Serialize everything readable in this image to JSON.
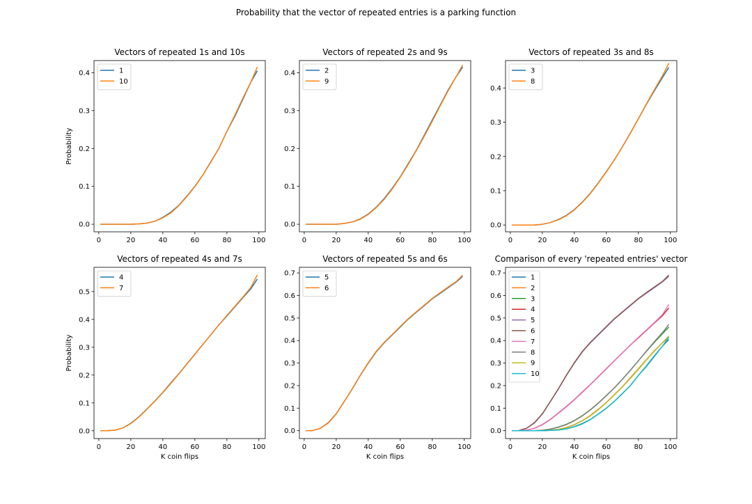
{
  "figure": {
    "title": "Probability that the vector of repeated entries is a parking function"
  },
  "chart_data": [
    {
      "type": "line",
      "title": "Vectors of repeated 1s and 10s",
      "xlabel": "",
      "ylabel": "Probability",
      "xlim": [
        -3,
        104
      ],
      "ylim": [
        -0.02,
        0.432
      ],
      "xticks": [
        0,
        20,
        40,
        60,
        80,
        100
      ],
      "yticks": [
        0.0,
        0.1,
        0.2,
        0.3,
        0.4
      ],
      "legend": "top-left",
      "series": [
        {
          "name": "1",
          "color": "#1f77b4",
          "x": [
            1,
            10,
            20,
            25,
            30,
            35,
            40,
            45,
            50,
            55,
            60,
            65,
            70,
            75,
            80,
            85,
            90,
            95,
            99
          ],
          "y": [
            0.0,
            0.0,
            0.0,
            0.001,
            0.003,
            0.008,
            0.018,
            0.032,
            0.05,
            0.074,
            0.1,
            0.13,
            0.165,
            0.2,
            0.245,
            0.285,
            0.33,
            0.375,
            0.405
          ]
        },
        {
          "name": "10",
          "color": "#ff7f0e",
          "x": [
            1,
            10,
            20,
            25,
            30,
            35,
            40,
            45,
            50,
            55,
            60,
            65,
            70,
            75,
            80,
            85,
            90,
            95,
            99
          ],
          "y": [
            0.0,
            0.0,
            0.0,
            0.001,
            0.003,
            0.008,
            0.017,
            0.03,
            0.049,
            0.073,
            0.099,
            0.13,
            0.164,
            0.2,
            0.245,
            0.288,
            0.333,
            0.375,
            0.415
          ]
        }
      ]
    },
    {
      "type": "line",
      "title": "Vectors of repeated 2s and 9s",
      "xlabel": "",
      "ylabel": "",
      "xlim": [
        -3,
        104
      ],
      "ylim": [
        -0.02,
        0.432
      ],
      "xticks": [
        0,
        20,
        40,
        60,
        80,
        100
      ],
      "yticks": [
        0.0,
        0.1,
        0.2,
        0.3,
        0.4
      ],
      "legend": "top-left",
      "series": [
        {
          "name": "2",
          "color": "#1f77b4",
          "x": [
            1,
            10,
            20,
            25,
            30,
            35,
            40,
            45,
            50,
            55,
            60,
            65,
            70,
            75,
            80,
            85,
            90,
            95,
            99
          ],
          "y": [
            0.0,
            0.0,
            0.0,
            0.002,
            0.006,
            0.014,
            0.027,
            0.045,
            0.068,
            0.095,
            0.125,
            0.16,
            0.195,
            0.235,
            0.275,
            0.315,
            0.355,
            0.39,
            0.415
          ]
        },
        {
          "name": "9",
          "color": "#ff7f0e",
          "x": [
            1,
            10,
            20,
            25,
            30,
            35,
            40,
            45,
            50,
            55,
            60,
            65,
            70,
            75,
            80,
            85,
            90,
            95,
            99
          ],
          "y": [
            0.0,
            0.0,
            0.0,
            0.002,
            0.006,
            0.013,
            0.026,
            0.044,
            0.066,
            0.093,
            0.124,
            0.158,
            0.194,
            0.232,
            0.272,
            0.313,
            0.353,
            0.39,
            0.42
          ]
        }
      ]
    },
    {
      "type": "line",
      "title": "Vectors of repeated 3s and 8s",
      "xlabel": "",
      "ylabel": "",
      "xlim": [
        -3,
        104
      ],
      "ylim": [
        -0.02,
        0.48
      ],
      "xticks": [
        0,
        20,
        40,
        60,
        80,
        100
      ],
      "yticks": [
        0.0,
        0.1,
        0.2,
        0.3,
        0.4
      ],
      "legend": "top-left",
      "series": [
        {
          "name": "3",
          "color": "#1f77b4",
          "x": [
            1,
            10,
            15,
            20,
            25,
            30,
            35,
            40,
            45,
            50,
            55,
            60,
            65,
            70,
            75,
            80,
            85,
            90,
            95,
            99
          ],
          "y": [
            0.0,
            0.0,
            0.0,
            0.002,
            0.007,
            0.016,
            0.028,
            0.045,
            0.067,
            0.093,
            0.123,
            0.156,
            0.19,
            0.228,
            0.268,
            0.31,
            0.352,
            0.392,
            0.43,
            0.46
          ]
        },
        {
          "name": "8",
          "color": "#ff7f0e",
          "x": [
            1,
            10,
            15,
            20,
            25,
            30,
            35,
            40,
            45,
            50,
            55,
            60,
            65,
            70,
            75,
            80,
            85,
            90,
            95,
            99
          ],
          "y": [
            0.0,
            0.0,
            0.0,
            0.002,
            0.007,
            0.015,
            0.027,
            0.044,
            0.066,
            0.092,
            0.122,
            0.155,
            0.19,
            0.228,
            0.268,
            0.31,
            0.353,
            0.395,
            0.435,
            0.472
          ]
        }
      ]
    },
    {
      "type": "line",
      "title": "Vectors of repeated 4s and 7s",
      "xlabel": "K coin flips",
      "ylabel": "Probability",
      "xlim": [
        -3,
        104
      ],
      "ylim": [
        -0.028,
        0.587
      ],
      "xticks": [
        0,
        20,
        40,
        60,
        80,
        100
      ],
      "yticks": [
        0.0,
        0.1,
        0.2,
        0.3,
        0.4,
        0.5
      ],
      "legend": "top-left",
      "series": [
        {
          "name": "4",
          "color": "#1f77b4",
          "x": [
            1,
            5,
            10,
            15,
            20,
            25,
            30,
            35,
            40,
            45,
            50,
            55,
            60,
            65,
            70,
            75,
            80,
            85,
            90,
            95,
            99
          ],
          "y": [
            0.0,
            0.0,
            0.002,
            0.01,
            0.027,
            0.05,
            0.078,
            0.107,
            0.138,
            0.172,
            0.205,
            0.24,
            0.275,
            0.31,
            0.345,
            0.38,
            0.412,
            0.445,
            0.478,
            0.51,
            0.545
          ]
        },
        {
          "name": "7",
          "color": "#ff7f0e",
          "x": [
            1,
            5,
            10,
            15,
            20,
            25,
            30,
            35,
            40,
            45,
            50,
            55,
            60,
            65,
            70,
            75,
            80,
            85,
            90,
            95,
            99
          ],
          "y": [
            0.0,
            0.0,
            0.002,
            0.01,
            0.026,
            0.049,
            0.077,
            0.106,
            0.137,
            0.17,
            0.204,
            0.239,
            0.274,
            0.31,
            0.345,
            0.38,
            0.414,
            0.447,
            0.48,
            0.515,
            0.56
          ]
        }
      ]
    },
    {
      "type": "line",
      "title": "Vectors of repeated 5s and 6s",
      "xlabel": "K coin flips",
      "ylabel": "",
      "xlim": [
        -3,
        104
      ],
      "ylim": [
        -0.035,
        0.725
      ],
      "xticks": [
        0,
        20,
        40,
        60,
        80,
        100
      ],
      "yticks": [
        0.0,
        0.1,
        0.2,
        0.3,
        0.4,
        0.5,
        0.6,
        0.7
      ],
      "legend": "top-left",
      "series": [
        {
          "name": "5",
          "color": "#1f77b4",
          "x": [
            1,
            5,
            10,
            15,
            20,
            25,
            30,
            35,
            40,
            45,
            50,
            55,
            60,
            65,
            70,
            75,
            80,
            85,
            90,
            95,
            99
          ],
          "y": [
            0.0,
            0.0,
            0.01,
            0.035,
            0.075,
            0.13,
            0.185,
            0.245,
            0.3,
            0.35,
            0.39,
            0.425,
            0.46,
            0.495,
            0.525,
            0.555,
            0.585,
            0.61,
            0.635,
            0.66,
            0.685
          ]
        },
        {
          "name": "6",
          "color": "#ff7f0e",
          "x": [
            1,
            5,
            10,
            15,
            20,
            25,
            30,
            35,
            40,
            45,
            50,
            55,
            60,
            65,
            70,
            75,
            80,
            85,
            90,
            95,
            99
          ],
          "y": [
            0.0,
            0.0,
            0.01,
            0.034,
            0.074,
            0.129,
            0.186,
            0.246,
            0.302,
            0.352,
            0.392,
            0.427,
            0.462,
            0.497,
            0.527,
            0.557,
            0.587,
            0.613,
            0.638,
            0.662,
            0.69
          ]
        }
      ]
    },
    {
      "type": "line",
      "title": "Comparison of every 'repeated entries' vector",
      "xlabel": "K coin flips",
      "ylabel": "",
      "xlim": [
        -3,
        104
      ],
      "ylim": [
        -0.035,
        0.725
      ],
      "xticks": [
        0,
        20,
        40,
        60,
        80,
        100
      ],
      "yticks": [
        0.0,
        0.1,
        0.2,
        0.3,
        0.4,
        0.5,
        0.6,
        0.7
      ],
      "legend": "top-left",
      "series": [
        {
          "name": "1",
          "color": "#1f77b4",
          "x": [
            1,
            10,
            20,
            25,
            30,
            35,
            40,
            45,
            50,
            55,
            60,
            65,
            70,
            75,
            80,
            85,
            90,
            95,
            99
          ],
          "y": [
            0.0,
            0.0,
            0.0,
            0.001,
            0.003,
            0.008,
            0.018,
            0.032,
            0.05,
            0.074,
            0.1,
            0.13,
            0.165,
            0.2,
            0.245,
            0.285,
            0.33,
            0.375,
            0.405
          ]
        },
        {
          "name": "2",
          "color": "#ff7f0e",
          "x": [
            1,
            10,
            20,
            25,
            30,
            35,
            40,
            45,
            50,
            55,
            60,
            65,
            70,
            75,
            80,
            85,
            90,
            95,
            99
          ],
          "y": [
            0.0,
            0.0,
            0.0,
            0.002,
            0.006,
            0.014,
            0.027,
            0.045,
            0.068,
            0.095,
            0.125,
            0.16,
            0.195,
            0.235,
            0.275,
            0.315,
            0.355,
            0.39,
            0.415
          ]
        },
        {
          "name": "3",
          "color": "#2ca02c",
          "x": [
            1,
            10,
            15,
            20,
            25,
            30,
            35,
            40,
            45,
            50,
            55,
            60,
            65,
            70,
            75,
            80,
            85,
            90,
            95,
            99
          ],
          "y": [
            0.0,
            0.0,
            0.0,
            0.002,
            0.007,
            0.016,
            0.028,
            0.045,
            0.067,
            0.093,
            0.123,
            0.156,
            0.19,
            0.228,
            0.268,
            0.31,
            0.352,
            0.392,
            0.43,
            0.46
          ]
        },
        {
          "name": "4",
          "color": "#d62728",
          "x": [
            1,
            5,
            10,
            15,
            20,
            25,
            30,
            35,
            40,
            45,
            50,
            55,
            60,
            65,
            70,
            75,
            80,
            85,
            90,
            95,
            99
          ],
          "y": [
            0.0,
            0.0,
            0.002,
            0.01,
            0.027,
            0.05,
            0.078,
            0.107,
            0.138,
            0.172,
            0.205,
            0.24,
            0.275,
            0.31,
            0.345,
            0.38,
            0.412,
            0.445,
            0.478,
            0.51,
            0.545
          ]
        },
        {
          "name": "5",
          "color": "#9467bd",
          "x": [
            1,
            5,
            10,
            15,
            20,
            25,
            30,
            35,
            40,
            45,
            50,
            55,
            60,
            65,
            70,
            75,
            80,
            85,
            90,
            95,
            99
          ],
          "y": [
            0.0,
            0.0,
            0.01,
            0.035,
            0.075,
            0.13,
            0.185,
            0.245,
            0.3,
            0.35,
            0.39,
            0.425,
            0.46,
            0.495,
            0.525,
            0.555,
            0.585,
            0.61,
            0.635,
            0.66,
            0.685
          ]
        },
        {
          "name": "6",
          "color": "#8c564b",
          "x": [
            1,
            5,
            10,
            15,
            20,
            25,
            30,
            35,
            40,
            45,
            50,
            55,
            60,
            65,
            70,
            75,
            80,
            85,
            90,
            95,
            99
          ],
          "y": [
            0.0,
            0.0,
            0.01,
            0.034,
            0.074,
            0.129,
            0.186,
            0.246,
            0.302,
            0.352,
            0.392,
            0.427,
            0.462,
            0.497,
            0.527,
            0.557,
            0.587,
            0.613,
            0.638,
            0.662,
            0.69
          ]
        },
        {
          "name": "7",
          "color": "#e377c2",
          "x": [
            1,
            5,
            10,
            15,
            20,
            25,
            30,
            35,
            40,
            45,
            50,
            55,
            60,
            65,
            70,
            75,
            80,
            85,
            90,
            95,
            99
          ],
          "y": [
            0.0,
            0.0,
            0.002,
            0.01,
            0.026,
            0.049,
            0.077,
            0.106,
            0.137,
            0.17,
            0.204,
            0.239,
            0.274,
            0.31,
            0.345,
            0.38,
            0.414,
            0.447,
            0.48,
            0.515,
            0.56
          ]
        },
        {
          "name": "8",
          "color": "#7f7f7f",
          "x": [
            1,
            10,
            15,
            20,
            25,
            30,
            35,
            40,
            45,
            50,
            55,
            60,
            65,
            70,
            75,
            80,
            85,
            90,
            95,
            99
          ],
          "y": [
            0.0,
            0.0,
            0.0,
            0.002,
            0.007,
            0.015,
            0.027,
            0.044,
            0.066,
            0.092,
            0.122,
            0.155,
            0.19,
            0.228,
            0.268,
            0.31,
            0.353,
            0.395,
            0.435,
            0.472
          ]
        },
        {
          "name": "9",
          "color": "#bcbd22",
          "x": [
            1,
            10,
            20,
            25,
            30,
            35,
            40,
            45,
            50,
            55,
            60,
            65,
            70,
            75,
            80,
            85,
            90,
            95,
            99
          ],
          "y": [
            0.0,
            0.0,
            0.0,
            0.002,
            0.006,
            0.013,
            0.026,
            0.044,
            0.066,
            0.093,
            0.124,
            0.158,
            0.194,
            0.232,
            0.272,
            0.313,
            0.353,
            0.39,
            0.42
          ]
        },
        {
          "name": "10",
          "color": "#17becf",
          "x": [
            1,
            10,
            20,
            25,
            30,
            35,
            40,
            45,
            50,
            55,
            60,
            65,
            70,
            75,
            80,
            85,
            90,
            95,
            99
          ],
          "y": [
            0.0,
            0.0,
            0.0,
            0.001,
            0.003,
            0.008,
            0.017,
            0.03,
            0.049,
            0.073,
            0.099,
            0.13,
            0.164,
            0.2,
            0.245,
            0.288,
            0.333,
            0.375,
            0.415
          ]
        }
      ]
    }
  ]
}
